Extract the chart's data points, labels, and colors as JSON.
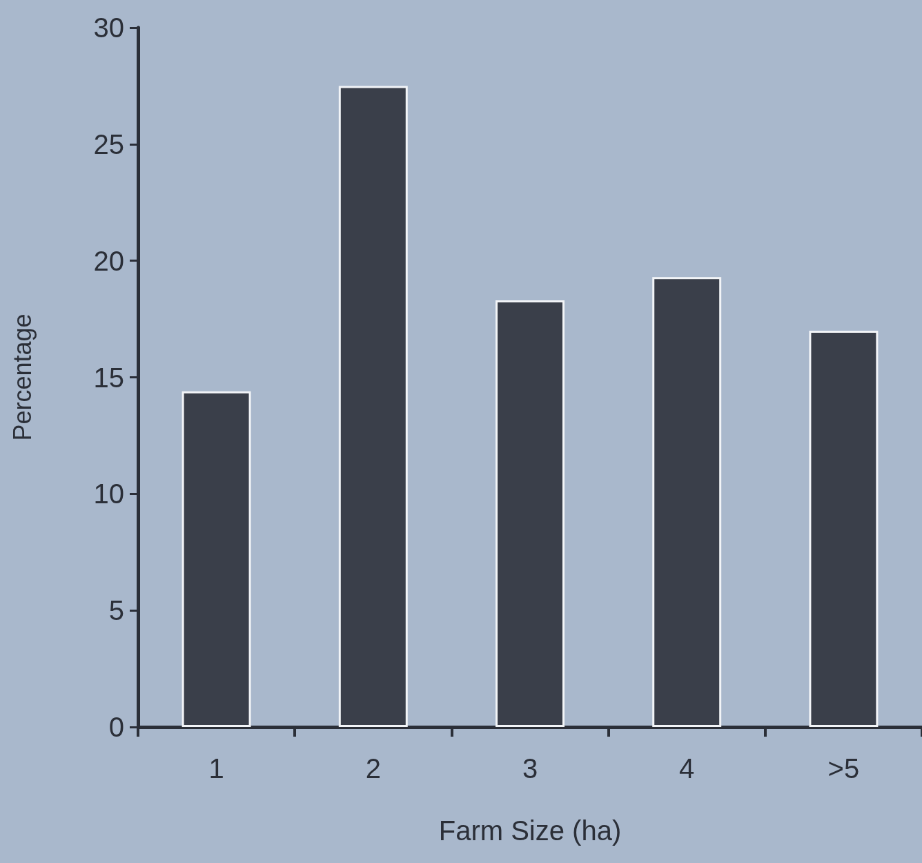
{
  "chart_data": {
    "type": "bar",
    "xlabel": "Farm Size (ha)",
    "ylabel": "Percentage",
    "categories": [
      "1",
      "2",
      "3",
      "4",
      ">5"
    ],
    "values": [
      14.4,
      27.5,
      18.3,
      19.3,
      17.0
    ],
    "color": "#3a3f4a",
    "ylim": [
      0,
      30
    ],
    "yticks": [
      0,
      5,
      10,
      15,
      20,
      25,
      30
    ],
    "grid": false
  }
}
